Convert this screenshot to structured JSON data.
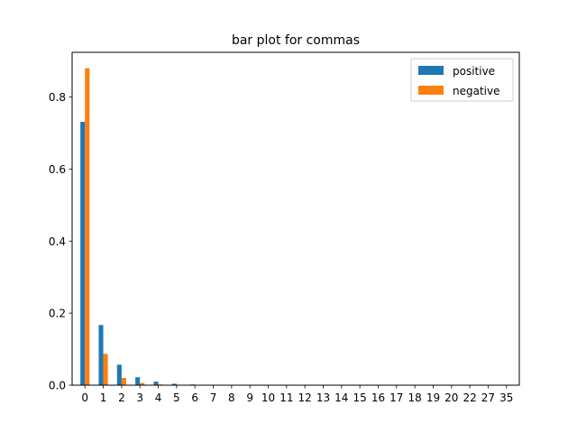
{
  "chart_data": {
    "type": "bar",
    "title": "bar plot for commas",
    "xlabel": "",
    "ylabel": "",
    "categories": [
      "0",
      "1",
      "2",
      "3",
      "4",
      "5",
      "6",
      "7",
      "8",
      "9",
      "10",
      "11",
      "12",
      "13",
      "14",
      "15",
      "16",
      "17",
      "18",
      "19",
      "20",
      "22",
      "27",
      "35"
    ],
    "series": [
      {
        "name": "positive",
        "color": "#1f77b4",
        "values": [
          0.731,
          0.167,
          0.057,
          0.022,
          0.01,
          0.004,
          0.002,
          0.001,
          0.0005,
          0.0004,
          0.0003,
          0.0002,
          0.0002,
          0.0001,
          0.0001,
          0.0001,
          0.0001,
          0.0001,
          0.0001,
          0.0001,
          0.0001,
          0.0001,
          0.0001,
          0.0001
        ]
      },
      {
        "name": "negative",
        "color": "#ff7f0e",
        "values": [
          0.88,
          0.087,
          0.02,
          0.006,
          0.002,
          0.001,
          0.0005,
          0.0003,
          0.0002,
          0.0001,
          0.0001,
          0.0001,
          0.0001,
          0.0001,
          0.0001,
          0.0001,
          0.0001,
          0.0001,
          0.0001,
          0.0001,
          0.0001,
          0.0001,
          0.0001,
          0.0001
        ]
      }
    ],
    "yticks": [
      "0.0",
      "0.2",
      "0.4",
      "0.6",
      "0.8"
    ],
    "ylim": [
      0,
      0.924
    ],
    "grid": false,
    "legend_position": "top-right"
  }
}
